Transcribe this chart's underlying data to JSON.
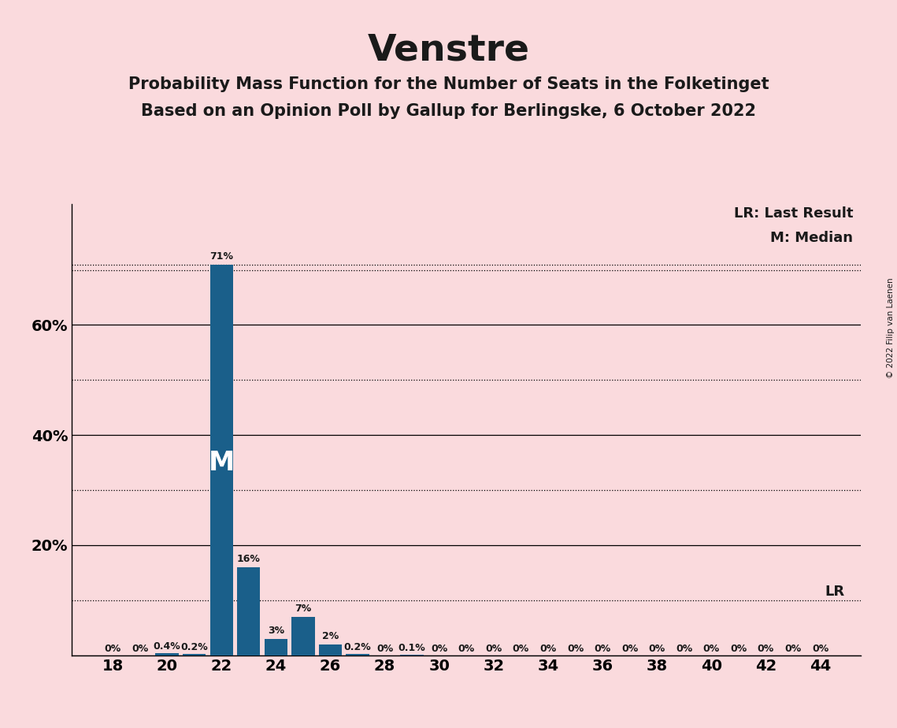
{
  "title": "Venstre",
  "subtitle1": "Probability Mass Function for the Number of Seats in the Folketinget",
  "subtitle2": "Based on an Opinion Poll by Gallup for Berlingske, 6 October 2022",
  "copyright": "© 2022 Filip van Laenen",
  "background_color": "#fadadd",
  "bar_color": "#1a5f8a",
  "seats": [
    18,
    19,
    20,
    21,
    22,
    23,
    24,
    25,
    26,
    27,
    28,
    29,
    30,
    31,
    32,
    33,
    34,
    35,
    36,
    37,
    38,
    39,
    40,
    41,
    42,
    43,
    44
  ],
  "probabilities": [
    0.0,
    0.0,
    0.004,
    0.002,
    0.71,
    0.16,
    0.03,
    0.07,
    0.02,
    0.002,
    0.0,
    0.001,
    0.0,
    0.0,
    0.0,
    0.0,
    0.0,
    0.0,
    0.0,
    0.0,
    0.0,
    0.0,
    0.0,
    0.0,
    0.0,
    0.0,
    0.0
  ],
  "bar_labels": [
    "0%",
    "0%",
    "0.4%",
    "0.2%",
    "71%",
    "16%",
    "3%",
    "7%",
    "2%",
    "0.2%",
    "0%",
    "0.1%",
    "0%",
    "0%",
    "0%",
    "0%",
    "0%",
    "0%",
    "0%",
    "0%",
    "0%",
    "0%",
    "0%",
    "0%",
    "0%",
    "0%",
    "0%"
  ],
  "median_seat": 22,
  "last_result_value": 0.1,
  "ylim_max": 0.82,
  "legend_lr": "LR: Last Result",
  "legend_m": "M: Median",
  "lr_label": "LR",
  "m_label": "M",
  "yticks_solid": [
    0.0,
    0.2,
    0.4,
    0.6
  ],
  "yticks_dotted": [
    0.1,
    0.3,
    0.5,
    0.7,
    0.71
  ]
}
